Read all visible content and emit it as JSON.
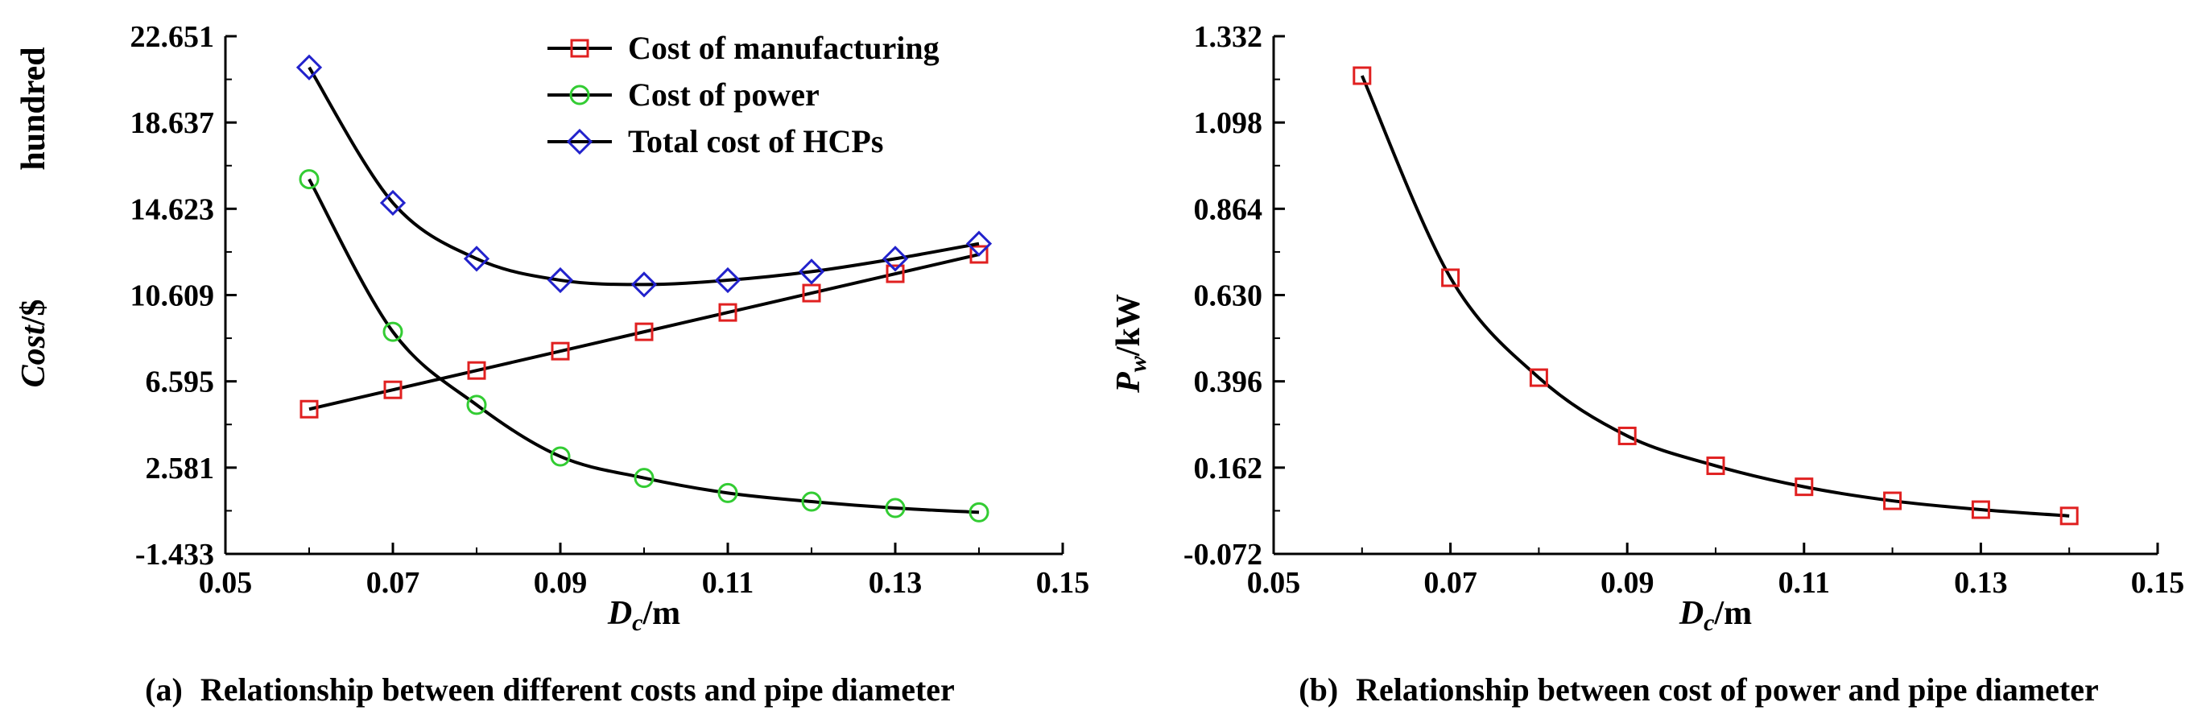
{
  "chart_data": [
    {
      "type": "line",
      "caption_tag": "(a)",
      "caption": "Relationship between different costs and pipe diameter",
      "xlabel": {
        "symbol": "D",
        "subscript": "c",
        "unit": "/m"
      },
      "ylabel": {
        "symbol": "Cost",
        "unit": "/$",
        "extra": "hundred"
      },
      "xlim": [
        0.05,
        0.15
      ],
      "ylim": [
        -1.433,
        22.651
      ],
      "xticks": [
        "0.05",
        "0.07",
        "0.09",
        "0.11",
        "0.13",
        "0.15"
      ],
      "yticks": [
        "-1.433",
        "2.581",
        "6.595",
        "10.609",
        "14.623",
        "18.637",
        "22.651"
      ],
      "legend_position": "top-center",
      "x": [
        0.06,
        0.07,
        0.08,
        0.09,
        0.1,
        0.11,
        0.12,
        0.13,
        0.14
      ],
      "series": [
        {
          "name": "Cost of manufacturing",
          "marker": "square",
          "color": "#e02020",
          "values": [
            5.3,
            6.2,
            7.1,
            8.0,
            8.9,
            9.8,
            10.7,
            11.6,
            12.5
          ]
        },
        {
          "name": "Cost of power",
          "marker": "circle",
          "color": "#33cc33",
          "values": [
            16.0,
            8.9,
            5.5,
            3.1,
            2.1,
            1.4,
            1.0,
            0.7,
            0.5
          ]
        },
        {
          "name": "Total cost of HCPs",
          "marker": "diamond",
          "color": "#2222cc",
          "values": [
            21.2,
            14.9,
            12.3,
            11.3,
            11.1,
            11.3,
            11.7,
            12.3,
            13.0
          ]
        }
      ]
    },
    {
      "type": "line",
      "caption_tag": "(b)",
      "caption": "Relationship between cost of power and pipe diameter",
      "xlabel": {
        "symbol": "D",
        "subscript": "c",
        "unit": "/m"
      },
      "ylabel": {
        "symbol": "P",
        "subscript": "w",
        "unit": "/kW"
      },
      "xlim": [
        0.05,
        0.15
      ],
      "ylim": [
        -0.072,
        1.332
      ],
      "xticks": [
        "0.05",
        "0.07",
        "0.09",
        "0.11",
        "0.13",
        "0.15"
      ],
      "yticks": [
        "-0.072",
        "0.162",
        "0.396",
        "0.630",
        "0.864",
        "1.098",
        "1.332"
      ],
      "x": [
        0.06,
        0.07,
        0.08,
        0.09,
        0.1,
        0.11,
        0.12,
        0.13,
        0.14
      ],
      "series": [
        {
          "name": "",
          "marker": "square",
          "color": "#e02020",
          "values": [
            1.225,
            0.677,
            0.406,
            0.248,
            0.167,
            0.11,
            0.072,
            0.048,
            0.031
          ]
        }
      ]
    }
  ]
}
